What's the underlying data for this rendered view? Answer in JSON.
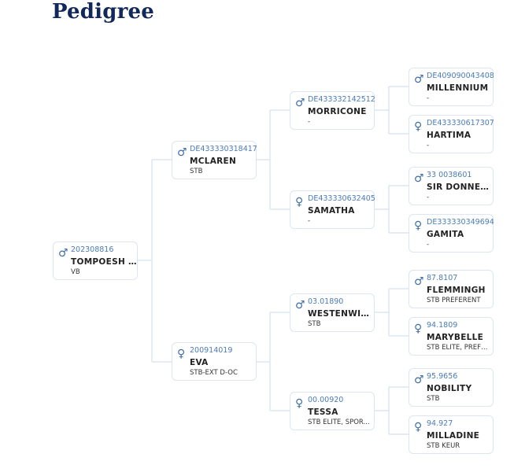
{
  "page": {
    "title": "Pedigree"
  },
  "colors": {
    "accent": "#4b7cb8",
    "title": "#13285a",
    "border": "#dbe6f2"
  },
  "horses": [
    {
      "key": "root",
      "sex": "male",
      "icon": "male-icon",
      "id": "202308816",
      "name": "TOMPOESH ...",
      "sub": "VB"
    },
    {
      "key": "sire",
      "sex": "male",
      "icon": "male-icon",
      "id": "DE433330318417",
      "name": "MCLAREN",
      "sub": "STB"
    },
    {
      "key": "dam",
      "sex": "female",
      "icon": "female-icon",
      "id": "200914019",
      "name": "EVA",
      "sub": "STB-EXT D-OC"
    },
    {
      "key": "ss",
      "sex": "male",
      "icon": "male-icon",
      "id": "DE433332142512",
      "name": "MORRICONE",
      "sub": "-"
    },
    {
      "key": "sd",
      "sex": "female",
      "icon": "female-icon",
      "id": "DE433330632405",
      "name": "SAMATHA",
      "sub": "-"
    },
    {
      "key": "ds",
      "sex": "male",
      "icon": "male-icon",
      "id": "03.01890",
      "name": "WESTENWIND",
      "sub": "STB"
    },
    {
      "key": "dd",
      "sex": "female",
      "icon": "female-icon",
      "id": "00.00920",
      "name": "TESSA",
      "sub": "STB ELITE, SPOR..."
    },
    {
      "key": "sss",
      "sex": "male",
      "icon": "male-icon",
      "id": "DE409090043408",
      "name": "MILLENNIUM",
      "sub": "-"
    },
    {
      "key": "ssd",
      "sex": "female",
      "icon": "female-icon",
      "id": "DE433330617307",
      "name": "HARTIMA",
      "sub": "-"
    },
    {
      "key": "sds",
      "sex": "male",
      "icon": "male-icon",
      "id": "33 0038601",
      "name": "SIR DONNER...",
      "sub": "-"
    },
    {
      "key": "sdd",
      "sex": "female",
      "icon": "female-icon",
      "id": "DE333330349694",
      "name": "GAMITA",
      "sub": "-"
    },
    {
      "key": "dss",
      "sex": "male",
      "icon": "male-icon",
      "id": "87.8107",
      "name": "FLEMMINGH",
      "sub": "STB PREFERENT"
    },
    {
      "key": "dsd",
      "sex": "female",
      "icon": "female-icon",
      "id": "94.1809",
      "name": "MARYBELLE",
      "sub": "STB ELITE, PREFE..."
    },
    {
      "key": "dds",
      "sex": "male",
      "icon": "male-icon",
      "id": "95.9656",
      "name": "NOBILITY",
      "sub": "STB"
    },
    {
      "key": "ddd",
      "sex": "female",
      "icon": "female-icon",
      "id": "94.927",
      "name": "MILLADINE",
      "sub": "STB KEUR"
    }
  ]
}
